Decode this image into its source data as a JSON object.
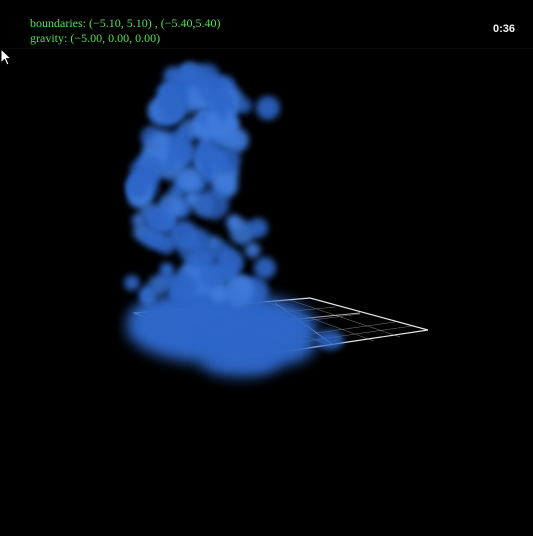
{
  "hud": {
    "boundaries_text": "boundaries: (−5.10, 5.10) , (−5.40,5.40)",
    "gravity_text": "gravity: (−5.00, 0.00, 0.00)",
    "timer": "0:36"
  },
  "scene": {
    "particle_color": "#2e66c8",
    "particle_highlight": "#3f7bdc",
    "grid_color": "#ffffff",
    "cursor_icon": "arrow-cursor-icon"
  }
}
